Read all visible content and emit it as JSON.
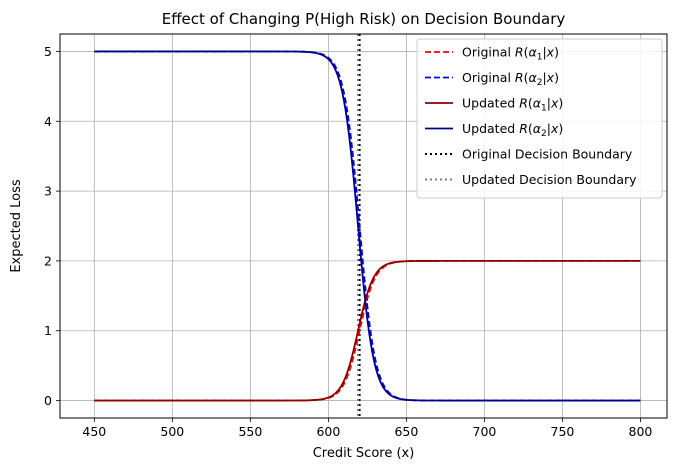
{
  "chart_data": {
    "type": "line",
    "title": "Effect of Changing P(High Risk) on Decision Boundary",
    "xlabel": "Credit Score (x)",
    "ylabel": "Expected Loss",
    "xlim": [
      428,
      817
    ],
    "ylim": [
      -0.25,
      5.25
    ],
    "xticks": [
      450,
      500,
      550,
      600,
      650,
      700,
      750,
      800
    ],
    "yticks": [
      0,
      1,
      2,
      3,
      4,
      5
    ],
    "grid": true,
    "legend_position": "top-right",
    "series": [
      {
        "name": "Original R(α1|x)",
        "label_prefix": "Original ",
        "alpha_index": "1",
        "color": "#ff0000",
        "dash": "dashed",
        "kind": "alpha1",
        "center": 620.0,
        "scale": 5.0
      },
      {
        "name": "Original R(α2|x)",
        "label_prefix": "Original ",
        "alpha_index": "2",
        "color": "#0000ff",
        "dash": "dashed",
        "kind": "alpha2",
        "center": 620.0,
        "scale": 5.0
      },
      {
        "name": "Updated R(α1|x)",
        "label_prefix": "Updated ",
        "alpha_index": "1",
        "color": "#8b0000",
        "dash": "solid",
        "kind": "alpha1",
        "center": 619.0,
        "scale": 5.0
      },
      {
        "name": "Updated R(α2|x)",
        "label_prefix": "Updated ",
        "alpha_index": "2",
        "color": "#00008b",
        "dash": "solid",
        "kind": "alpha2",
        "center": 619.0,
        "scale": 5.0
      }
    ],
    "boundaries": [
      {
        "name": "Original Decision Boundary",
        "x": 620,
        "color": "#000000"
      },
      {
        "name": "Updated Decision Boundary",
        "x": 619,
        "color": "#808080"
      }
    ]
  }
}
